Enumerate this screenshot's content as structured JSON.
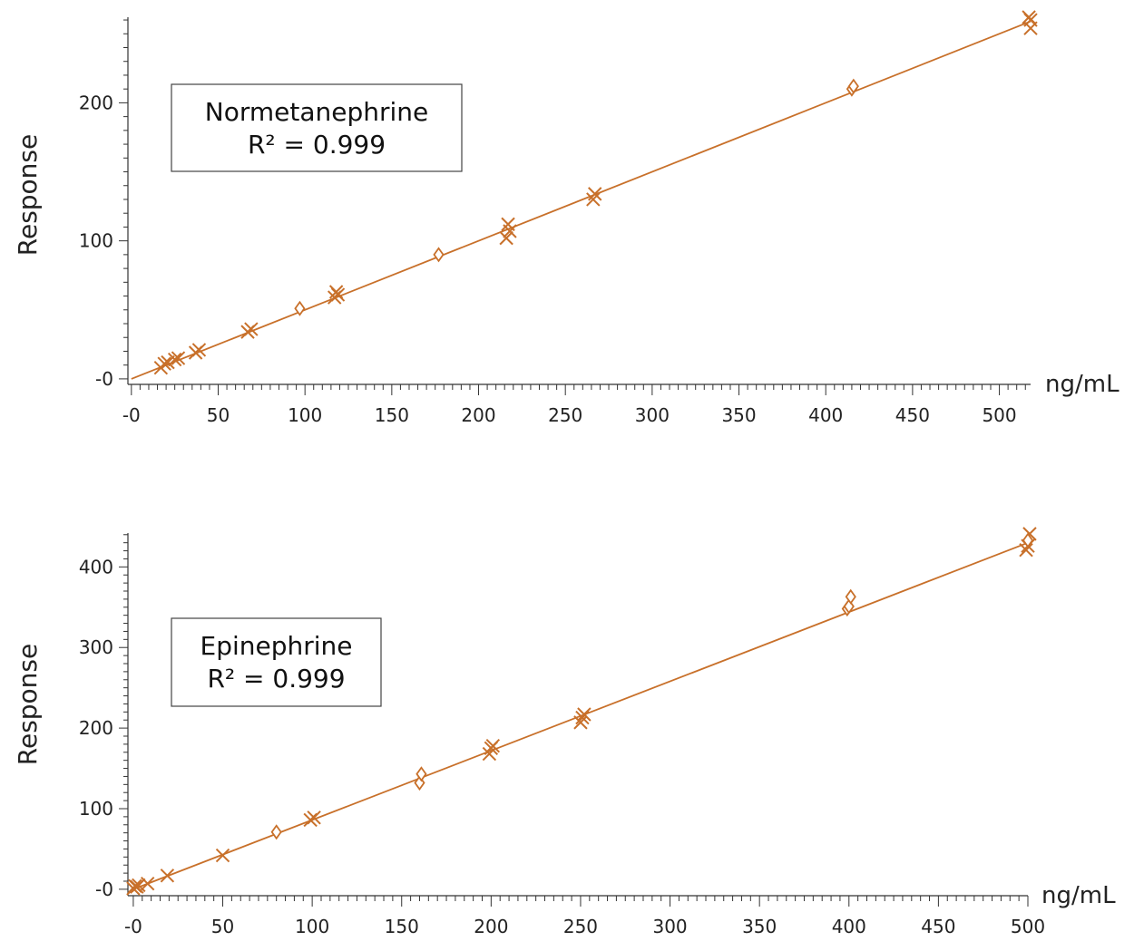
{
  "colors": {
    "series": "#c8702a",
    "axis": "#333333",
    "text": "#222222"
  },
  "chart_data": [
    {
      "type": "scatter",
      "title": "Normetanephrine",
      "annotation": "R² = 0.999",
      "xlabel": "ng/mL",
      "ylabel": "Response",
      "xlim": [
        -2,
        518
      ],
      "ylim": [
        -4,
        262
      ],
      "x_ticks": [
        0,
        50,
        100,
        150,
        200,
        250,
        300,
        350,
        400,
        450,
        500
      ],
      "x_tick_labels": [
        "-0",
        "50",
        "100",
        "150",
        "200",
        "250",
        "300",
        "350",
        "400",
        "450",
        "500"
      ],
      "y_ticks": [
        0,
        100,
        200
      ],
      "y_tick_labels": [
        "-0",
        "100",
        "200"
      ],
      "fit_line": {
        "x": [
          0,
          518
        ],
        "y": [
          0,
          259
        ]
      },
      "markers_x": [
        [
          17,
          8
        ],
        [
          19,
          11
        ],
        [
          21,
          12
        ],
        [
          25,
          14
        ],
        [
          27,
          15
        ],
        [
          37,
          19
        ],
        [
          39,
          21
        ],
        [
          67,
          34
        ],
        [
          69,
          36
        ],
        [
          117,
          59
        ],
        [
          118,
          63
        ],
        [
          119,
          61
        ],
        [
          216,
          102
        ],
        [
          217,
          112
        ],
        [
          218,
          107
        ],
        [
          266,
          130
        ],
        [
          267,
          134
        ],
        [
          518,
          254
        ],
        [
          518,
          260
        ],
        [
          517,
          262
        ]
      ],
      "markers_diamond": [
        [
          97,
          51
        ],
        [
          177,
          90
        ],
        [
          415,
          210
        ],
        [
          416,
          212
        ]
      ]
    },
    {
      "type": "scatter",
      "title": "Epinephrine",
      "annotation": "R² = 0.999",
      "xlabel": "ng/mL",
      "ylabel": "Response",
      "xlim": [
        -3,
        500
      ],
      "ylim": [
        -8,
        442
      ],
      "x_ticks": [
        0,
        50,
        100,
        150,
        200,
        250,
        300,
        350,
        400,
        450,
        500
      ],
      "x_tick_labels": [
        "-0",
        "50",
        "100",
        "150",
        "200",
        "250",
        "300",
        "350",
        "400",
        "450",
        "500"
      ],
      "y_ticks": [
        0,
        100,
        200,
        300,
        400
      ],
      "y_tick_labels": [
        "-0",
        "100",
        "200",
        "300",
        "400"
      ],
      "fit_line": {
        "x": [
          0,
          500
        ],
        "y": [
          0,
          430
        ]
      },
      "markers_x": [
        [
          0,
          1
        ],
        [
          1,
          4
        ],
        [
          2,
          3
        ],
        [
          3,
          5
        ],
        [
          8,
          7
        ],
        [
          19,
          17
        ],
        [
          50,
          42
        ],
        [
          99,
          86
        ],
        [
          101,
          89
        ],
        [
          199,
          168
        ],
        [
          200,
          175
        ],
        [
          201,
          178
        ],
        [
          250,
          207
        ],
        [
          251,
          213
        ],
        [
          252,
          217
        ],
        [
          499,
          421
        ],
        [
          500,
          426
        ],
        [
          501,
          441
        ]
      ],
      "markers_diamond": [
        [
          80,
          71
        ],
        [
          160,
          132
        ],
        [
          161,
          143
        ],
        [
          399,
          348
        ],
        [
          400,
          351
        ],
        [
          401,
          363
        ],
        [
          500,
          433
        ]
      ]
    }
  ]
}
